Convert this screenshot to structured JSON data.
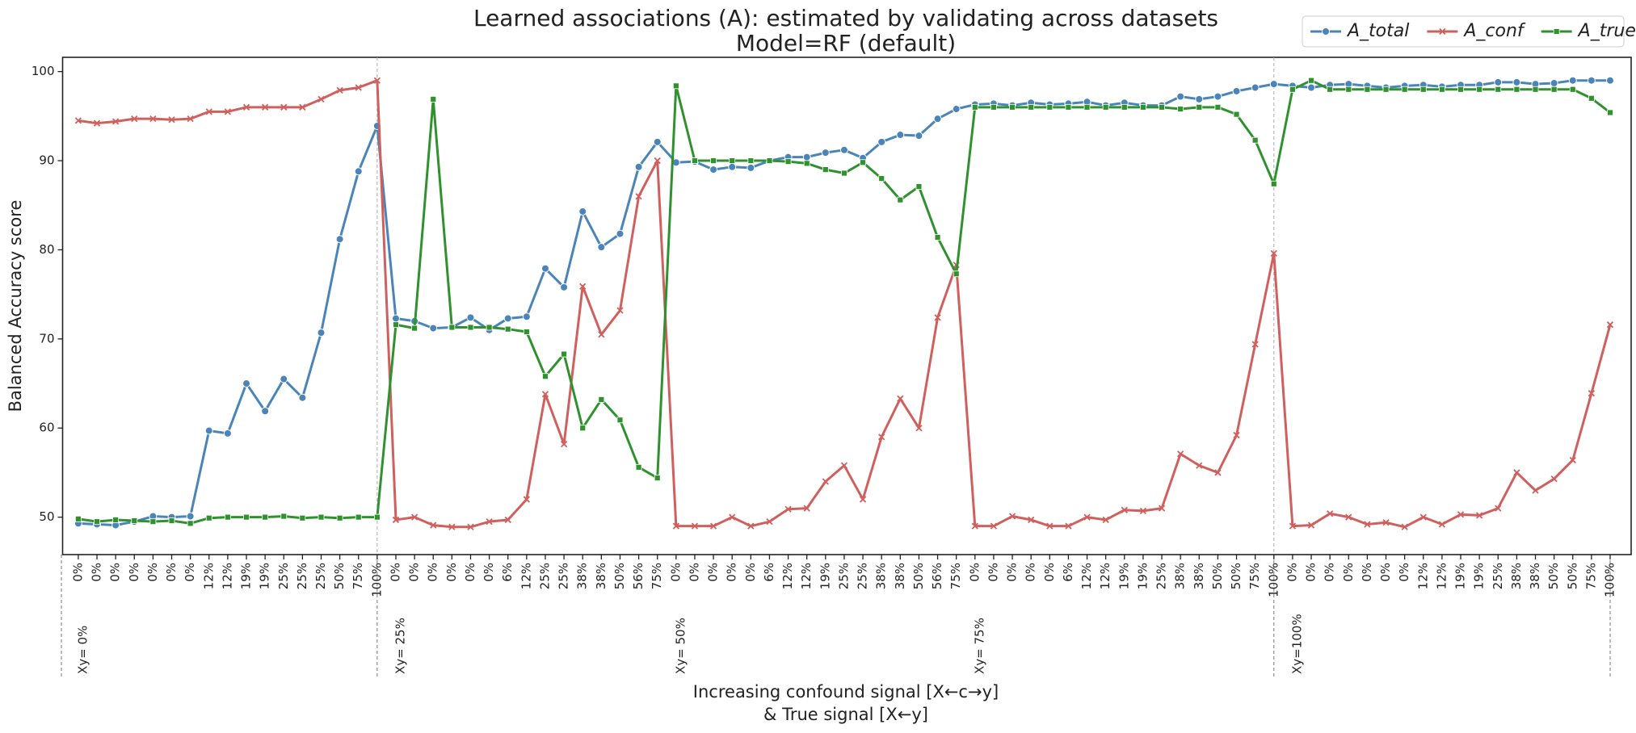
{
  "chart_data": {
    "type": "line",
    "title": "Learned associations (A): estimated by validating across datasets",
    "subtitle": "Model=RF (default)",
    "ylabel": "Balanced Accuracy score",
    "xlabel": [
      "Increasing confound signal [X←c→y]",
      "&   True signal  [X←y]"
    ],
    "categories": [
      "0%",
      "0%",
      "0%",
      "0%",
      "0%",
      "0%",
      "0%",
      "12%",
      "12%",
      "19%",
      "19%",
      "25%",
      "25%",
      "25%",
      "50%",
      "75%",
      "100%",
      "0%",
      "0%",
      "0%",
      "0%",
      "0%",
      "0%",
      "6%",
      "12%",
      "25%",
      "25%",
      "38%",
      "38%",
      "50%",
      "56%",
      "75%",
      "0%",
      "0%",
      "0%",
      "0%",
      "0%",
      "6%",
      "12%",
      "12%",
      "19%",
      "25%",
      "25%",
      "38%",
      "38%",
      "50%",
      "56%",
      "75%",
      "0%",
      "0%",
      "0%",
      "0%",
      "0%",
      "6%",
      "12%",
      "12%",
      "19%",
      "19%",
      "25%",
      "38%",
      "38%",
      "50%",
      "50%",
      "75%",
      "100%",
      "0%",
      "0%",
      "0%",
      "0%",
      "0%",
      "0%",
      "0%",
      "12%",
      "12%",
      "19%",
      "19%",
      "25%",
      "38%",
      "38%",
      "50%",
      "50%",
      "75%",
      "100%"
    ],
    "groups": [
      {
        "label": "Xy=  0%",
        "start": 0
      },
      {
        "label": "Xy= 25%",
        "start": 17
      },
      {
        "label": "Xy= 50%",
        "start": 32
      },
      {
        "label": "Xy= 75%",
        "start": 48
      },
      {
        "label": "Xy=100%",
        "start": 65
      }
    ],
    "series": [
      {
        "name": "A_total",
        "color": "#4a84b8",
        "marker": "circle",
        "values": [
          49.3,
          49.2,
          49.1,
          49.5,
          50.1,
          50,
          50.1,
          59.7,
          59.4,
          65,
          61.9,
          65.5,
          63.4,
          70.7,
          81.2,
          88.8,
          93.9,
          72.3,
          72,
          71.2,
          71.3,
          72.4,
          71,
          72.3,
          72.5,
          77.9,
          75.8,
          84.3,
          80.3,
          81.8,
          89.3,
          92.1,
          89.8,
          89.9,
          89,
          89.3,
          89.2,
          90,
          90.4,
          90.4,
          90.9,
          91.2,
          90.3,
          92.1,
          92.9,
          92.8,
          94.7,
          95.8,
          96.3,
          96.4,
          96.2,
          96.5,
          96.3,
          96.4,
          96.6,
          96.2,
          96.5,
          96.2,
          96.2,
          97.2,
          96.9,
          97.2,
          97.8,
          98.2,
          98.6,
          98.4,
          98.2,
          98.5,
          98.6,
          98.4,
          98.2,
          98.4,
          98.5,
          98.3,
          98.5,
          98.5,
          98.8,
          98.8,
          98.6,
          98.7,
          99,
          99,
          99
        ]
      },
      {
        "name": "A_conf",
        "color": "#d0605e",
        "marker": "x",
        "values": [
          94.5,
          94.2,
          94.4,
          94.7,
          94.7,
          94.6,
          94.7,
          95.5,
          95.5,
          96,
          96,
          96,
          96,
          96.9,
          97.9,
          98.2,
          99,
          49.7,
          50,
          49.1,
          48.9,
          48.9,
          49.5,
          49.7,
          52,
          63.8,
          58.2,
          75.9,
          70.5,
          73.2,
          86,
          90,
          49,
          49,
          49,
          50,
          49,
          49.5,
          50.9,
          51,
          54,
          55.8,
          52,
          59,
          63.3,
          60,
          72.4,
          78.3,
          49,
          49,
          50.1,
          49.7,
          49,
          49,
          50,
          49.7,
          50.8,
          50.7,
          51,
          57.1,
          55.8,
          55,
          59.2,
          69.4,
          79.6,
          49,
          49.1,
          50.4,
          50,
          49.2,
          49.4,
          48.9,
          50,
          49.2,
          50.3,
          50.2,
          51,
          55,
          53,
          54.3,
          56.4,
          63.9,
          71.6
        ]
      },
      {
        "name": "A_true",
        "color": "#2f922f",
        "marker": "square",
        "values": [
          49.8,
          49.5,
          49.7,
          49.6,
          49.5,
          49.6,
          49.3,
          49.9,
          50,
          50,
          50,
          50.1,
          49.9,
          50,
          49.9,
          50,
          50,
          71.6,
          71.2,
          96.9,
          71.3,
          71.3,
          71.3,
          71.1,
          70.8,
          65.8,
          68.3,
          60,
          63.2,
          60.9,
          55.6,
          54.4,
          98.4,
          90,
          90,
          90,
          90,
          90,
          89.9,
          89.7,
          89,
          88.6,
          89.8,
          88,
          85.6,
          87.1,
          81.4,
          77.3,
          96,
          96,
          96,
          96,
          96,
          96,
          96,
          96,
          96,
          96,
          96,
          95.8,
          96,
          96,
          95.2,
          92.3,
          87.4,
          98,
          99,
          98,
          98,
          98,
          98,
          98,
          98,
          98,
          98,
          98,
          98,
          98,
          98,
          98,
          98,
          97,
          95.4
        ]
      }
    ],
    "ylim": [
      45.8,
      101.6
    ],
    "yticks": [
      50,
      60,
      70,
      80,
      90,
      100
    ],
    "legend": "upper right"
  }
}
